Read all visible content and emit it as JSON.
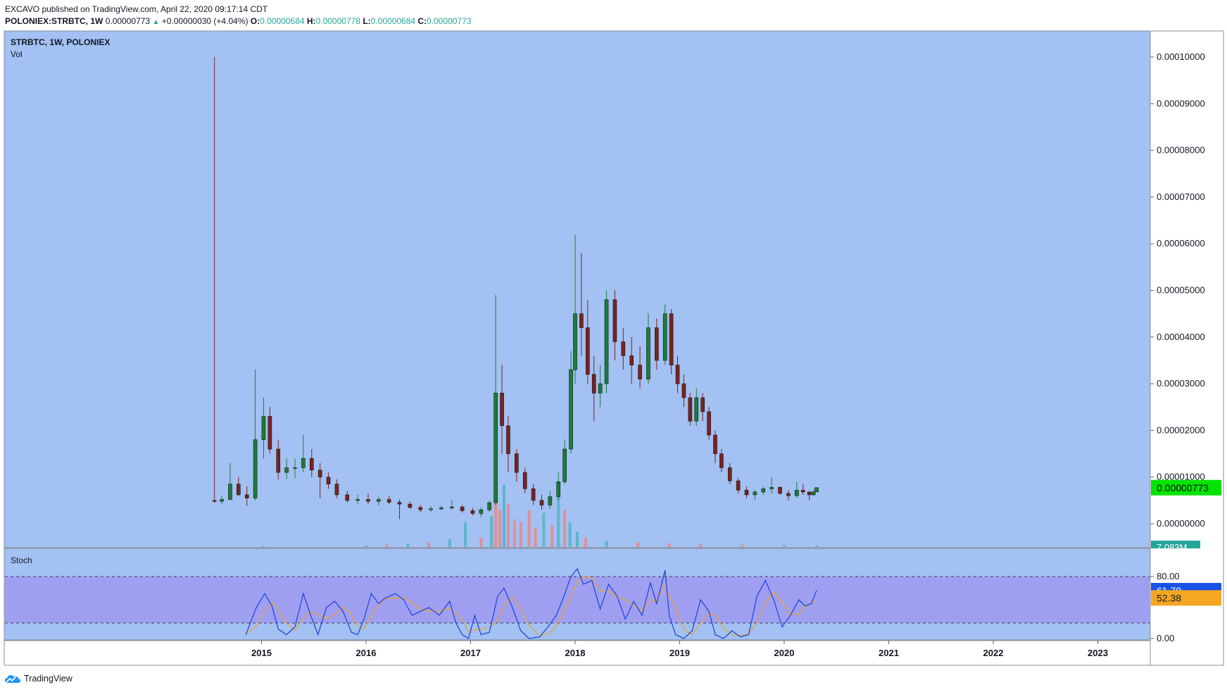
{
  "header": {
    "publisher_line": "EXCAVO published on TradingView.com, April 22, 2020 09:17:14 CDT",
    "symbol": "POLONIEX:STRBTC, 1W",
    "last": "0.00000773",
    "change": "+0.00000030 (+4.04%)",
    "o_label": "O:",
    "o_value": "0.00000684",
    "h_label": "H:",
    "h_value": "0.00000778",
    "l_label": "L:",
    "l_value": "0.00000684",
    "c_label": "C:",
    "c_value": "0.00000773"
  },
  "legend": {
    "main": "STRBTC, 1W, POLONIEX",
    "volume": "Vol",
    "oscillator": "Stoch"
  },
  "brand": {
    "name": "TradingView"
  },
  "colors": {
    "pane_bg": "#a3c1f2",
    "stoch_band": "#9f9ff2",
    "up": "#1b7d3a",
    "down": "#7d2222",
    "vol_up": "#5fb6c9",
    "vol_down": "#df8f9a",
    "k_line": "#2448d8",
    "d_line": "#e8a23a",
    "price_tag": "#00e400",
    "vol_tag": "#26a69a",
    "k_tag": "#1a52e6",
    "d_tag": "#f5a623"
  },
  "chart_data": {
    "type": "candlestick",
    "title": "STRBTC, 1W, POLONIEX",
    "interval": "1W",
    "price_axis": {
      "ticks": [
        "0.00010000",
        "0.00009000",
        "0.00008000",
        "0.00007000",
        "0.00006000",
        "0.00005000",
        "0.00004000",
        "0.00003000",
        "0.00002000",
        "0.00001000",
        "0.00000000"
      ],
      "range": [
        -5e-07,
        0.000105
      ]
    },
    "time_axis": {
      "ticks": [
        "2015",
        "2016",
        "2017",
        "2018",
        "2019",
        "2020",
        "2021",
        "2022",
        "2023"
      ],
      "range": [
        2014.0,
        2023.5
      ]
    },
    "last_price": "0.00000773",
    "last_volume": "7.083M",
    "price_series": [
      [
        2014.55,
        5e-06,
        0.0001,
        4.5e-06,
        4.8e-06
      ],
      [
        2014.62,
        4.8e-06,
        6e-06,
        4.2e-06,
        5.2e-06
      ],
      [
        2014.7,
        5.2e-06,
        1.3e-05,
        5e-06,
        8.5e-06
      ],
      [
        2014.78,
        8.5e-06,
        1e-05,
        6e-06,
        6.2e-06
      ],
      [
        2014.86,
        6.2e-06,
        8e-06,
        3.8e-06,
        5.5e-06
      ],
      [
        2014.94,
        5.5e-06,
        3.3e-05,
        5e-06,
        1.8e-05
      ],
      [
        2015.02,
        1.8e-05,
        2.7e-05,
        1.4e-05,
        2.3e-05
      ],
      [
        2015.08,
        2.3e-05,
        2.5e-05,
        1.5e-05,
        1.6e-05
      ],
      [
        2015.16,
        1.6e-05,
        1.8e-05,
        9.5e-06,
        1.1e-05
      ],
      [
        2015.24,
        1.1e-05,
        1.4e-05,
        9.5e-06,
        1.2e-05
      ],
      [
        2015.32,
        1.2e-05,
        1.4e-05,
        9.8e-06,
        1.2e-05
      ],
      [
        2015.4,
        1.2e-05,
        1.9e-05,
        1.1e-05,
        1.4e-05
      ],
      [
        2015.48,
        1.4e-05,
        1.6e-05,
        1e-05,
        1.15e-05
      ],
      [
        2015.56,
        1.15e-05,
        1.3e-05,
        5.5e-06,
        1e-05
      ],
      [
        2015.64,
        1e-05,
        1.1e-05,
        7.5e-06,
        8.5e-06
      ],
      [
        2015.72,
        8.5e-06,
        9.5e-06,
        5.5e-06,
        6.2e-06
      ],
      [
        2015.82,
        6.2e-06,
        7e-06,
        4.5e-06,
        5e-06
      ],
      [
        2015.92,
        5e-06,
        6.2e-06,
        4.2e-06,
        5.2e-06
      ],
      [
        2016.02,
        5.2e-06,
        6.5e-06,
        4.2e-06,
        4.8e-06
      ],
      [
        2016.12,
        4.8e-06,
        5.8e-06,
        4e-06,
        5.2e-06
      ],
      [
        2016.22,
        5.2e-06,
        6e-06,
        4.2e-06,
        4.6e-06
      ],
      [
        2016.32,
        4.6e-06,
        5.2e-06,
        1e-06,
        4.2e-06
      ],
      [
        2016.42,
        4.2e-06,
        4.8e-06,
        3.2e-06,
        3.5e-06
      ],
      [
        2016.52,
        3.5e-06,
        4e-06,
        2.5e-06,
        3e-06
      ],
      [
        2016.62,
        3e-06,
        3.8e-06,
        2.6e-06,
        3.2e-06
      ],
      [
        2016.72,
        3.2e-06,
        3.8e-06,
        2.8e-06,
        3.4e-06
      ],
      [
        2016.82,
        3.4e-06,
        5e-06,
        3e-06,
        3.6e-06
      ],
      [
        2016.92,
        3.6e-06,
        4e-06,
        2.4e-06,
        2.8e-06
      ],
      [
        2017.02,
        2.8e-06,
        3.4e-06,
        1.8e-06,
        2.2e-06
      ],
      [
        2017.1,
        2.2e-06,
        3.5e-06,
        1.5e-06,
        3e-06
      ],
      [
        2017.18,
        3e-06,
        5e-06,
        2.5e-06,
        4.5e-06
      ],
      [
        2017.24,
        4.5e-06,
        4.9e-05,
        4e-06,
        2.8e-05
      ],
      [
        2017.3,
        2.8e-05,
        3.4e-05,
        1.5e-05,
        2.1e-05
      ],
      [
        2017.36,
        2.1e-05,
        2.3e-05,
        1.1e-05,
        1.5e-05
      ],
      [
        2017.44,
        1.5e-05,
        1.6e-05,
        9e-06,
        1.1e-05
      ],
      [
        2017.52,
        1.1e-05,
        1.2e-05,
        6.5e-06,
        7.5e-06
      ],
      [
        2017.6,
        7.5e-06,
        8.5e-06,
        4e-06,
        5e-06
      ],
      [
        2017.68,
        5e-06,
        6.2e-06,
        3e-06,
        4e-06
      ],
      [
        2017.76,
        4e-06,
        7e-06,
        3.2e-06,
        5.8e-06
      ],
      [
        2017.84,
        5.8e-06,
        1.1e-05,
        5e-06,
        9e-06
      ],
      [
        2017.9,
        9e-06,
        1.8e-05,
        8.5e-06,
        1.6e-05
      ],
      [
        2017.96,
        1.6e-05,
        3.7e-05,
        1.5e-05,
        3.3e-05
      ],
      [
        2018.0,
        3.3e-05,
        6.2e-05,
        3e-05,
        4.5e-05
      ],
      [
        2018.06,
        4.5e-05,
        5.8e-05,
        3.6e-05,
        4.2e-05
      ],
      [
        2018.12,
        4.2e-05,
        4.8e-05,
        3e-05,
        3.2e-05
      ],
      [
        2018.18,
        3.2e-05,
        3.6e-05,
        2.2e-05,
        2.8e-05
      ],
      [
        2018.24,
        2.8e-05,
        3.4e-05,
        2.5e-05,
        3e-05
      ],
      [
        2018.3,
        3e-05,
        5e-05,
        2.8e-05,
        4.8e-05
      ],
      [
        2018.38,
        4.8e-05,
        5e-05,
        3.5e-05,
        3.9e-05
      ],
      [
        2018.46,
        3.9e-05,
        4.2e-05,
        3.3e-05,
        3.6e-05
      ],
      [
        2018.54,
        3.6e-05,
        4e-05,
        3e-05,
        3.4e-05
      ],
      [
        2018.62,
        3.4e-05,
        3.8e-05,
        2.9e-05,
        3.1e-05
      ],
      [
        2018.7,
        3.1e-05,
        4.5e-05,
        3e-05,
        4.2e-05
      ],
      [
        2018.78,
        4.2e-05,
        4.4e-05,
        3.3e-05,
        3.5e-05
      ],
      [
        2018.86,
        3.5e-05,
        4.7e-05,
        3.4e-05,
        4.5e-05
      ],
      [
        2018.92,
        4.5e-05,
        4.6e-05,
        3.2e-05,
        3.4e-05
      ],
      [
        2018.98,
        3.4e-05,
        3.6e-05,
        2.8e-05,
        3e-05
      ],
      [
        2019.04,
        3e-05,
        3.2e-05,
        2.5e-05,
        2.7e-05
      ],
      [
        2019.1,
        2.7e-05,
        2.8e-05,
        2.1e-05,
        2.2e-05
      ],
      [
        2019.16,
        2.2e-05,
        2.9e-05,
        2.1e-05,
        2.7e-05
      ],
      [
        2019.22,
        2.7e-05,
        2.8e-05,
        2.2e-05,
        2.4e-05
      ],
      [
        2019.28,
        2.4e-05,
        2.5e-05,
        1.8e-05,
        1.9e-05
      ],
      [
        2019.34,
        1.9e-05,
        2e-05,
        1.3e-05,
        1.5e-05
      ],
      [
        2019.4,
        1.5e-05,
        1.6e-05,
        1.1e-05,
        1.2e-05
      ],
      [
        2019.48,
        1.2e-05,
        1.3e-05,
        8.5e-06,
        9.2e-06
      ],
      [
        2019.56,
        9.2e-06,
        9.8e-06,
        6.5e-06,
        7.2e-06
      ],
      [
        2019.64,
        7.2e-06,
        8e-06,
        5.5e-06,
        6.2e-06
      ],
      [
        2019.72,
        6.2e-06,
        7.2e-06,
        5.2e-06,
        6.8e-06
      ],
      [
        2019.8,
        6.8e-06,
        8e-06,
        6.2e-06,
        7.5e-06
      ],
      [
        2019.88,
        7.5e-06,
        1e-05,
        6.5e-06,
        7.8e-06
      ],
      [
        2019.96,
        7.8e-06,
        8e-06,
        6.2e-06,
        6.5e-06
      ],
      [
        2020.04,
        6.5e-06,
        7.2e-06,
        5e-06,
        6e-06
      ],
      [
        2020.12,
        6e-06,
        9e-06,
        5.5e-06,
        7.2e-06
      ],
      [
        2020.18,
        7.2e-06,
        8.5e-06,
        6.2e-06,
        6.8e-06
      ],
      [
        2020.24,
        6.8e-06,
        7e-06,
        5e-06,
        6.2e-06
      ],
      [
        2020.28,
        6.2e-06,
        7.2e-06,
        6e-06,
        6.8e-06
      ],
      [
        2020.31,
        6.84e-06,
        7.78e-06,
        6.84e-06,
        7.73e-06
      ]
    ],
    "volume_series": [
      [
        2015.02,
        0.3,
        1
      ],
      [
        2016.0,
        0.5,
        1
      ],
      [
        2016.2,
        0.8,
        0
      ],
      [
        2016.4,
        1.0,
        1
      ],
      [
        2016.6,
        1.5,
        0
      ],
      [
        2016.8,
        2.5,
        1
      ],
      [
        2016.95,
        8.0,
        1
      ],
      [
        2017.1,
        3.0,
        0
      ],
      [
        2017.2,
        10.0,
        1
      ],
      [
        2017.24,
        16.0,
        0
      ],
      [
        2017.28,
        12.0,
        0
      ],
      [
        2017.32,
        20.0,
        1
      ],
      [
        2017.36,
        14.0,
        0
      ],
      [
        2017.42,
        9.0,
        0
      ],
      [
        2017.48,
        8.0,
        0
      ],
      [
        2017.56,
        12.0,
        0
      ],
      [
        2017.62,
        6.0,
        0
      ],
      [
        2017.7,
        11.0,
        1
      ],
      [
        2017.78,
        7.0,
        0
      ],
      [
        2017.84,
        17.0,
        1
      ],
      [
        2017.9,
        12.0,
        0
      ],
      [
        2017.95,
        8.0,
        1
      ],
      [
        2018.02,
        5.0,
        1
      ],
      [
        2018.1,
        3.0,
        0
      ],
      [
        2018.3,
        2.0,
        1
      ],
      [
        2018.6,
        1.5,
        0
      ],
      [
        2018.9,
        1.2,
        0
      ],
      [
        2019.2,
        1.0,
        0
      ],
      [
        2019.6,
        0.8,
        0
      ],
      [
        2020.0,
        0.6,
        1
      ],
      [
        2020.31,
        0.5,
        1
      ]
    ],
    "volume_ymax": 25,
    "stoch": {
      "title": "Stoch",
      "upper": 80,
      "lower": 20,
      "ticks": [
        "80.00",
        "0.00"
      ],
      "range": [
        0,
        100
      ],
      "k_value": "61.78",
      "d_value": "52.38",
      "k_series": [
        [
          2014.85,
          5
        ],
        [
          2014.95,
          40
        ],
        [
          2015.03,
          58
        ],
        [
          2015.1,
          42
        ],
        [
          2015.16,
          12
        ],
        [
          2015.24,
          5
        ],
        [
          2015.32,
          15
        ],
        [
          2015.4,
          58
        ],
        [
          2015.47,
          30
        ],
        [
          2015.54,
          5
        ],
        [
          2015.62,
          40
        ],
        [
          2015.7,
          48
        ],
        [
          2015.78,
          35
        ],
        [
          2015.86,
          8
        ],
        [
          2015.92,
          5
        ],
        [
          2015.98,
          25
        ],
        [
          2016.05,
          58
        ],
        [
          2016.12,
          45
        ],
        [
          2016.18,
          52
        ],
        [
          2016.28,
          58
        ],
        [
          2016.36,
          50
        ],
        [
          2016.44,
          30
        ],
        [
          2016.52,
          35
        ],
        [
          2016.6,
          40
        ],
        [
          2016.7,
          30
        ],
        [
          2016.8,
          48
        ],
        [
          2016.86,
          20
        ],
        [
          2016.92,
          5
        ],
        [
          2016.98,
          0
        ],
        [
          2017.04,
          30
        ],
        [
          2017.1,
          5
        ],
        [
          2017.18,
          8
        ],
        [
          2017.26,
          55
        ],
        [
          2017.32,
          65
        ],
        [
          2017.4,
          40
        ],
        [
          2017.48,
          10
        ],
        [
          2017.56,
          0
        ],
        [
          2017.66,
          2
        ],
        [
          2017.74,
          15
        ],
        [
          2017.82,
          30
        ],
        [
          2017.88,
          50
        ],
        [
          2017.96,
          80
        ],
        [
          2018.02,
          90
        ],
        [
          2018.08,
          70
        ],
        [
          2018.16,
          75
        ],
        [
          2018.24,
          38
        ],
        [
          2018.32,
          70
        ],
        [
          2018.4,
          55
        ],
        [
          2018.48,
          25
        ],
        [
          2018.56,
          48
        ],
        [
          2018.64,
          30
        ],
        [
          2018.72,
          72
        ],
        [
          2018.78,
          45
        ],
        [
          2018.86,
          88
        ],
        [
          2018.9,
          30
        ],
        [
          2018.96,
          5
        ],
        [
          2019.04,
          0
        ],
        [
          2019.12,
          10
        ],
        [
          2019.2,
          50
        ],
        [
          2019.28,
          35
        ],
        [
          2019.34,
          5
        ],
        [
          2019.42,
          0
        ],
        [
          2019.5,
          10
        ],
        [
          2019.58,
          2
        ],
        [
          2019.66,
          5
        ],
        [
          2019.74,
          55
        ],
        [
          2019.82,
          75
        ],
        [
          2019.9,
          50
        ],
        [
          2019.98,
          15
        ],
        [
          2020.06,
          30
        ],
        [
          2020.14,
          50
        ],
        [
          2020.2,
          42
        ],
        [
          2020.26,
          45
        ],
        [
          2020.31,
          62
        ]
      ]
    }
  }
}
